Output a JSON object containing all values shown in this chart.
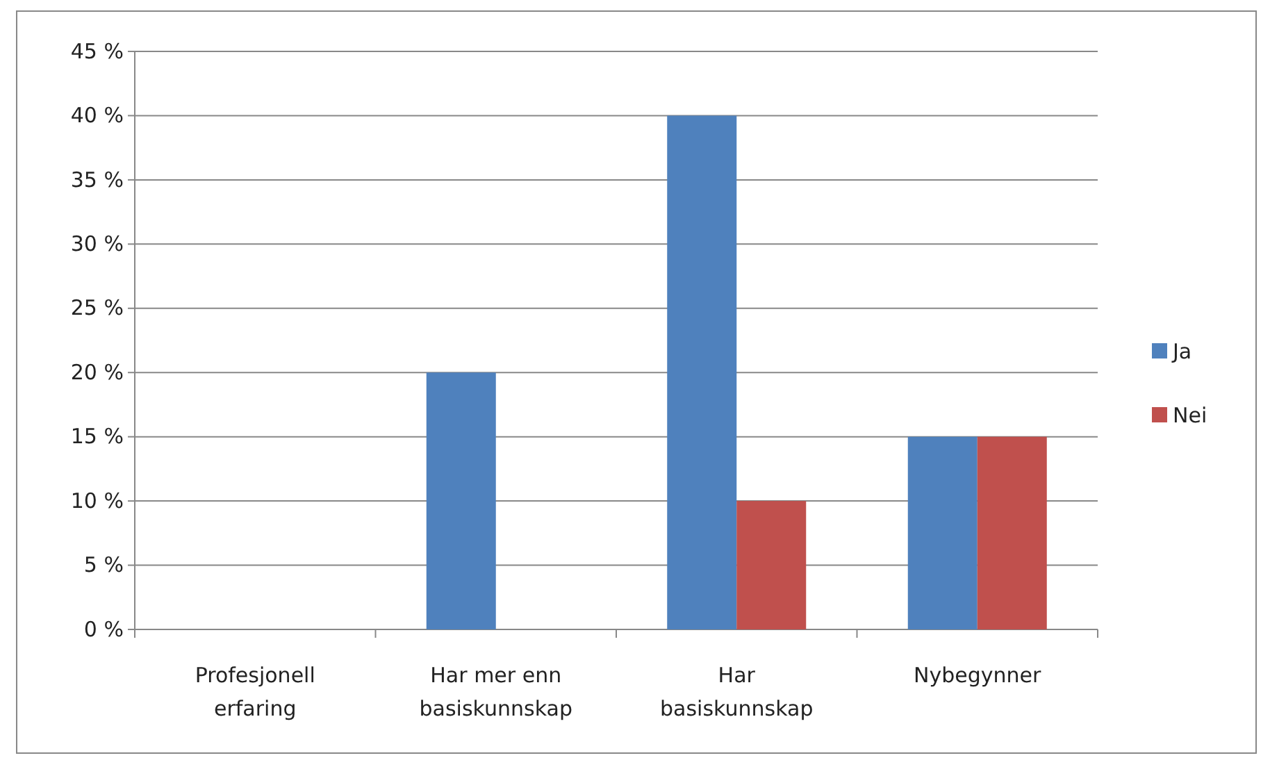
{
  "chart_data": {
    "type": "bar",
    "categories": [
      "Profesjonell erfaring",
      "Har mer enn basiskunnskap",
      "Har basiskunnskap",
      "Nybegynner"
    ],
    "series": [
      {
        "name": "Ja",
        "color": "#4f81bd",
        "values": [
          0,
          20,
          40,
          15
        ]
      },
      {
        "name": "Nei",
        "color": "#c0504d",
        "values": [
          0,
          0,
          10,
          15
        ]
      }
    ],
    "ylim": [
      0,
      45
    ],
    "yticks": [
      {
        "value": 0,
        "label": "0 %"
      },
      {
        "value": 5,
        "label": "5 %"
      },
      {
        "value": 10,
        "label": "10 %"
      },
      {
        "value": 15,
        "label": "15 %"
      },
      {
        "value": 20,
        "label": "20 %"
      },
      {
        "value": 25,
        "label": "25 %"
      },
      {
        "value": 30,
        "label": "30 %"
      },
      {
        "value": 35,
        "label": "35 %"
      },
      {
        "value": 40,
        "label": "40 %"
      },
      {
        "value": 45,
        "label": "45 %"
      }
    ],
    "grid": "y",
    "legend": "right"
  }
}
